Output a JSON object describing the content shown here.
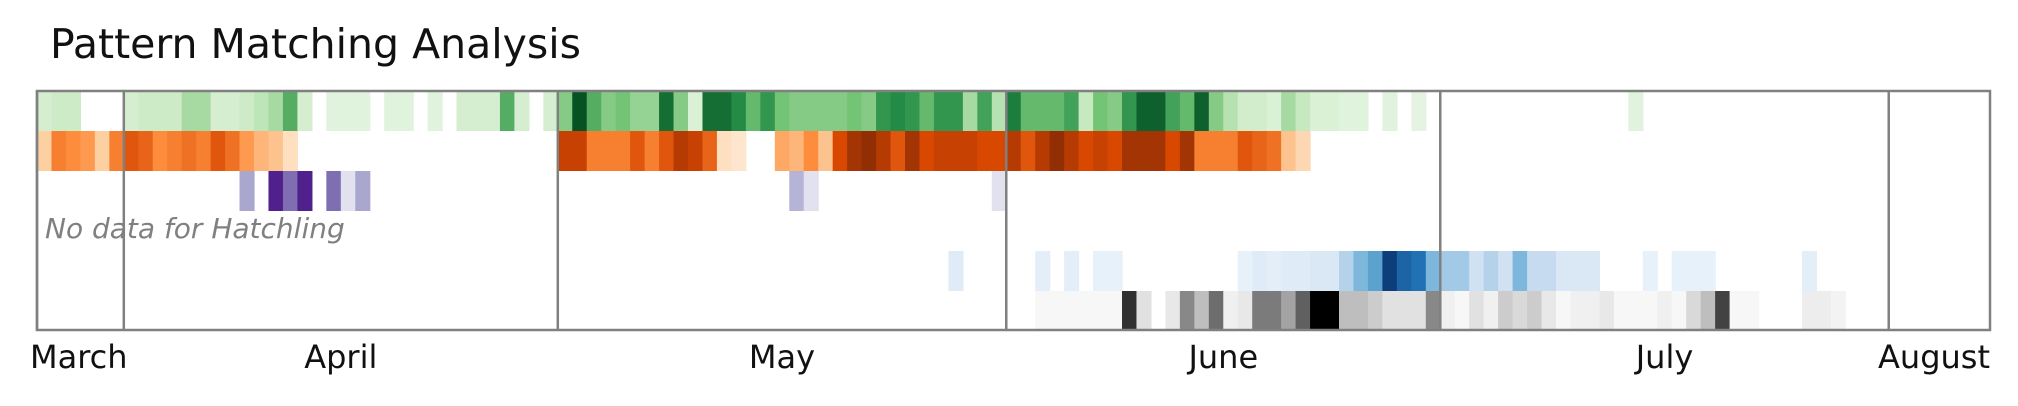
{
  "chart_data": {
    "type": "heatmap",
    "title": "Pattern Matching Analysis",
    "xlabel": "",
    "ylabel": "",
    "x_unit": "day",
    "x_range_days": [
      0,
      135
    ],
    "grid": "month boundaries",
    "month_ticks": [
      {
        "label": "March",
        "day": 0
      },
      {
        "label": "April",
        "day": 6
      },
      {
        "label": "May",
        "day": 36
      },
      {
        "label": "June",
        "day": 67
      },
      {
        "label": "July",
        "day": 97
      },
      {
        "label": "August",
        "day": 128
      }
    ],
    "note": "No data for Hatchling",
    "series": [
      {
        "name": "green",
        "colormap": "Greens",
        "runs": [
          [
            0,
            0.18
          ],
          [
            1,
            0.22
          ],
          [
            2,
            0.22
          ],
          [
            3,
            0
          ],
          [
            4,
            0
          ],
          [
            6,
            0.18
          ],
          [
            7,
            0.22
          ],
          [
            8,
            0.22
          ],
          [
            9,
            0.22
          ],
          [
            10,
            0.35
          ],
          [
            11,
            0.35
          ],
          [
            12,
            0.18
          ],
          [
            13,
            0.18
          ],
          [
            14,
            0.22
          ],
          [
            15,
            0.28
          ],
          [
            16,
            0.35
          ],
          [
            17,
            0.6
          ],
          [
            18,
            0.18
          ],
          [
            19,
            0
          ],
          [
            20,
            0.12
          ],
          [
            21,
            0.12
          ],
          [
            22,
            0.12
          ],
          [
            23,
            0
          ],
          [
            24,
            0.12
          ],
          [
            25,
            0.12
          ],
          [
            26,
            0
          ],
          [
            27,
            0.12
          ],
          [
            28,
            0
          ],
          [
            29,
            0.18
          ],
          [
            30,
            0.18
          ],
          [
            31,
            0.18
          ],
          [
            32,
            0.6
          ],
          [
            33,
            0.18
          ],
          [
            34,
            0
          ],
          [
            35,
            0.18
          ],
          [
            36,
            0.45
          ],
          [
            37,
            0.95
          ],
          [
            38,
            0.6
          ],
          [
            39,
            0.45
          ],
          [
            40,
            0.5
          ],
          [
            41,
            0.4
          ],
          [
            42,
            0.4
          ],
          [
            43,
            0.85
          ],
          [
            44,
            0.45
          ],
          [
            45,
            0.15
          ],
          [
            46,
            0.85
          ],
          [
            47,
            0.85
          ],
          [
            48,
            0.75
          ],
          [
            49,
            0.55
          ],
          [
            50,
            0.7
          ],
          [
            51,
            0.5
          ],
          [
            52,
            0.45
          ],
          [
            53,
            0.45
          ],
          [
            54,
            0.45
          ],
          [
            55,
            0.45
          ],
          [
            56,
            0.5
          ],
          [
            57,
            0.45
          ],
          [
            58,
            0.7
          ],
          [
            59,
            0.75
          ],
          [
            60,
            0.7
          ],
          [
            61,
            0.55
          ],
          [
            62,
            0.7
          ],
          [
            63,
            0.7
          ],
          [
            64,
            0.35
          ],
          [
            65,
            0.65
          ],
          [
            66,
            0.3
          ],
          [
            67,
            0.8
          ],
          [
            68,
            0.55
          ],
          [
            69,
            0.55
          ],
          [
            70,
            0.55
          ],
          [
            71,
            0.65
          ],
          [
            72,
            0.25
          ],
          [
            73,
            0.5
          ],
          [
            74,
            0.45
          ],
          [
            75,
            0.7
          ],
          [
            76,
            0.9
          ],
          [
            77,
            0.9
          ],
          [
            78,
            0.65
          ],
          [
            79,
            0.55
          ],
          [
            80,
            0.9
          ],
          [
            81,
            0.45
          ],
          [
            82,
            0.3
          ],
          [
            83,
            0.2
          ],
          [
            84,
            0.2
          ],
          [
            85,
            0.15
          ],
          [
            86,
            0.35
          ],
          [
            87,
            0.25
          ],
          [
            88,
            0.15
          ],
          [
            89,
            0.15
          ],
          [
            90,
            0.12
          ],
          [
            91,
            0.12
          ],
          [
            92,
            0
          ],
          [
            93,
            0.12
          ],
          [
            94,
            0
          ],
          [
            95,
            0.1
          ],
          [
            96,
            0
          ],
          [
            110,
            0.12
          ]
        ]
      },
      {
        "name": "orange",
        "colormap": "Oranges",
        "runs": [
          [
            0,
            0.25
          ],
          [
            1,
            0.55
          ],
          [
            2,
            0.5
          ],
          [
            3,
            0.45
          ],
          [
            4,
            0.25
          ],
          [
            5,
            0.55
          ],
          [
            6,
            0.7
          ],
          [
            7,
            0.65
          ],
          [
            8,
            0.5
          ],
          [
            9,
            0.55
          ],
          [
            10,
            0.6
          ],
          [
            11,
            0.55
          ],
          [
            12,
            0.7
          ],
          [
            13,
            0.6
          ],
          [
            14,
            0.45
          ],
          [
            15,
            0.35
          ],
          [
            16,
            0.3
          ],
          [
            17,
            0.15
          ],
          [
            18,
            0
          ],
          [
            19,
            0
          ],
          [
            36,
            0.8
          ],
          [
            37,
            0.8
          ],
          [
            38,
            0.55
          ],
          [
            39,
            0.55
          ],
          [
            40,
            0.55
          ],
          [
            41,
            0.7
          ],
          [
            42,
            0.55
          ],
          [
            43,
            0.7
          ],
          [
            44,
            0.85
          ],
          [
            45,
            0.8
          ],
          [
            46,
            0.65
          ],
          [
            47,
            0.15
          ],
          [
            48,
            0.1
          ],
          [
            49,
            0
          ],
          [
            50,
            0
          ],
          [
            51,
            0.4
          ],
          [
            52,
            0.35
          ],
          [
            53,
            0.5
          ],
          [
            54,
            0.3
          ],
          [
            55,
            0.75
          ],
          [
            56,
            0.9
          ],
          [
            57,
            0.95
          ],
          [
            58,
            0.85
          ],
          [
            59,
            0.7
          ],
          [
            60,
            0.9
          ],
          [
            61,
            0.75
          ],
          [
            62,
            0.8
          ],
          [
            63,
            0.8
          ],
          [
            64,
            0.8
          ],
          [
            65,
            0.75
          ],
          [
            66,
            0.75
          ],
          [
            67,
            0.85
          ],
          [
            68,
            0.7
          ],
          [
            69,
            0.85
          ],
          [
            70,
            0.95
          ],
          [
            71,
            0.85
          ],
          [
            72,
            0.75
          ],
          [
            73,
            0.8
          ],
          [
            74,
            0.75
          ],
          [
            75,
            0.9
          ],
          [
            76,
            0.9
          ],
          [
            77,
            0.9
          ],
          [
            78,
            0.75
          ],
          [
            79,
            0.9
          ],
          [
            80,
            0.55
          ],
          [
            81,
            0.55
          ],
          [
            82,
            0.55
          ],
          [
            83,
            0.7
          ],
          [
            84,
            0.65
          ],
          [
            85,
            0.6
          ],
          [
            86,
            0.3
          ],
          [
            87,
            0.2
          ]
        ]
      },
      {
        "name": "purple",
        "colormap": "Purples",
        "runs": [
          [
            14,
            0.45
          ],
          [
            16,
            0.9
          ],
          [
            17,
            0.65
          ],
          [
            18,
            0.9
          ],
          [
            20,
            0.65
          ],
          [
            21,
            0.2
          ],
          [
            22,
            0.45
          ],
          [
            52,
            0.4
          ],
          [
            53,
            0.2
          ],
          [
            66,
            0.2
          ]
        ]
      },
      {
        "name": "hatchling",
        "colormap": "none",
        "runs": []
      },
      {
        "name": "blue",
        "colormap": "Blues",
        "runs": [
          [
            63,
            0.12
          ],
          [
            69,
            0.1
          ],
          [
            71,
            0.1
          ],
          [
            73,
            0.08
          ],
          [
            74,
            0.08
          ],
          [
            83,
            0.08
          ],
          [
            84,
            0.12
          ],
          [
            85,
            0.1
          ],
          [
            86,
            0.12
          ],
          [
            87,
            0.12
          ],
          [
            88,
            0.15
          ],
          [
            89,
            0.15
          ],
          [
            90,
            0.3
          ],
          [
            91,
            0.45
          ],
          [
            92,
            0.55
          ],
          [
            93,
            0.95
          ],
          [
            94,
            0.8
          ],
          [
            95,
            0.75
          ],
          [
            96,
            0.45
          ],
          [
            97,
            0.35
          ],
          [
            98,
            0.35
          ],
          [
            99,
            0.2
          ],
          [
            100,
            0.3
          ],
          [
            101,
            0.2
          ],
          [
            102,
            0.45
          ],
          [
            103,
            0.25
          ],
          [
            104,
            0.25
          ],
          [
            105,
            0.15
          ],
          [
            106,
            0.15
          ],
          [
            107,
            0.15
          ],
          [
            111,
            0.08
          ],
          [
            113,
            0.08
          ],
          [
            114,
            0.08
          ],
          [
            115,
            0.08
          ],
          [
            122,
            0.1
          ]
        ]
      },
      {
        "name": "gray",
        "colormap": "Greys",
        "runs": [
          [
            69,
            0.05
          ],
          [
            70,
            0.05
          ],
          [
            71,
            0.05
          ],
          [
            72,
            0.05
          ],
          [
            73,
            0.05
          ],
          [
            74,
            0.05
          ],
          [
            75,
            0.85
          ],
          [
            76,
            0.2
          ],
          [
            77,
            0
          ],
          [
            78,
            0.15
          ],
          [
            79,
            0.55
          ],
          [
            80,
            0.35
          ],
          [
            81,
            0.65
          ],
          [
            82,
            0.1
          ],
          [
            83,
            0.15
          ],
          [
            84,
            0.6
          ],
          [
            85,
            0.6
          ],
          [
            86,
            0.45
          ],
          [
            87,
            0.7
          ],
          [
            88,
            1.0
          ],
          [
            89,
            1.0
          ],
          [
            90,
            0.35
          ],
          [
            91,
            0.35
          ],
          [
            92,
            0.3
          ],
          [
            93,
            0.2
          ],
          [
            94,
            0.2
          ],
          [
            95,
            0.2
          ],
          [
            96,
            0.55
          ],
          [
            97,
            0.1
          ],
          [
            98,
            0.05
          ],
          [
            99,
            0.2
          ],
          [
            100,
            0.1
          ],
          [
            101,
            0.3
          ],
          [
            102,
            0.25
          ],
          [
            103,
            0.3
          ],
          [
            104,
            0.15
          ],
          [
            105,
            0.05
          ],
          [
            106,
            0.1
          ],
          [
            107,
            0.1
          ],
          [
            108,
            0.15
          ],
          [
            109,
            0.05
          ],
          [
            110,
            0.05
          ],
          [
            111,
            0.05
          ],
          [
            112,
            0.1
          ],
          [
            113,
            0.05
          ],
          [
            114,
            0.25
          ],
          [
            115,
            0.35
          ],
          [
            116,
            0.8
          ],
          [
            117,
            0.05
          ],
          [
            118,
            0.05
          ],
          [
            119,
            0
          ],
          [
            120,
            0
          ],
          [
            121,
            0
          ],
          [
            122,
            0.12
          ],
          [
            123,
            0.12
          ],
          [
            124,
            0.08
          ],
          [
            125,
            0
          ],
          [
            126,
            0
          ],
          [
            127,
            0
          ]
        ]
      }
    ]
  }
}
